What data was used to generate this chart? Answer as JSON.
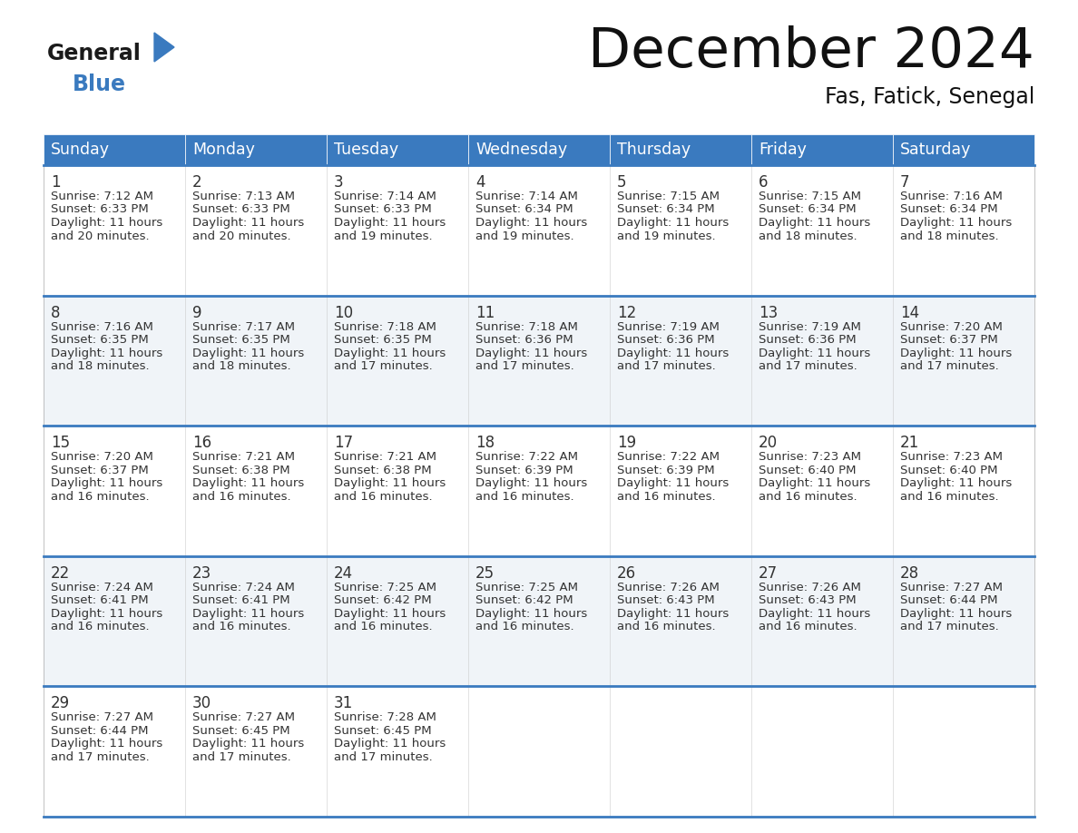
{
  "title": "December 2024",
  "subtitle": "Fas, Fatick, Senegal",
  "header_color": "#3a7abf",
  "header_text_color": "#ffffff",
  "cell_bg_light": "#f0f4f8",
  "cell_bg_white": "#ffffff",
  "days_of_week": [
    "Sunday",
    "Monday",
    "Tuesday",
    "Wednesday",
    "Thursday",
    "Friday",
    "Saturday"
  ],
  "weeks": [
    [
      {
        "day": 1,
        "sunrise": "7:12 AM",
        "sunset": "6:33 PM",
        "daylight": "11 hours and 20 minutes."
      },
      {
        "day": 2,
        "sunrise": "7:13 AM",
        "sunset": "6:33 PM",
        "daylight": "11 hours and 20 minutes."
      },
      {
        "day": 3,
        "sunrise": "7:14 AM",
        "sunset": "6:33 PM",
        "daylight": "11 hours and 19 minutes."
      },
      {
        "day": 4,
        "sunrise": "7:14 AM",
        "sunset": "6:34 PM",
        "daylight": "11 hours and 19 minutes."
      },
      {
        "day": 5,
        "sunrise": "7:15 AM",
        "sunset": "6:34 PM",
        "daylight": "11 hours and 19 minutes."
      },
      {
        "day": 6,
        "sunrise": "7:15 AM",
        "sunset": "6:34 PM",
        "daylight": "11 hours and 18 minutes."
      },
      {
        "day": 7,
        "sunrise": "7:16 AM",
        "sunset": "6:34 PM",
        "daylight": "11 hours and 18 minutes."
      }
    ],
    [
      {
        "day": 8,
        "sunrise": "7:16 AM",
        "sunset": "6:35 PM",
        "daylight": "11 hours and 18 minutes."
      },
      {
        "day": 9,
        "sunrise": "7:17 AM",
        "sunset": "6:35 PM",
        "daylight": "11 hours and 18 minutes."
      },
      {
        "day": 10,
        "sunrise": "7:18 AM",
        "sunset": "6:35 PM",
        "daylight": "11 hours and 17 minutes."
      },
      {
        "day": 11,
        "sunrise": "7:18 AM",
        "sunset": "6:36 PM",
        "daylight": "11 hours and 17 minutes."
      },
      {
        "day": 12,
        "sunrise": "7:19 AM",
        "sunset": "6:36 PM",
        "daylight": "11 hours and 17 minutes."
      },
      {
        "day": 13,
        "sunrise": "7:19 AM",
        "sunset": "6:36 PM",
        "daylight": "11 hours and 17 minutes."
      },
      {
        "day": 14,
        "sunrise": "7:20 AM",
        "sunset": "6:37 PM",
        "daylight": "11 hours and 17 minutes."
      }
    ],
    [
      {
        "day": 15,
        "sunrise": "7:20 AM",
        "sunset": "6:37 PM",
        "daylight": "11 hours and 16 minutes."
      },
      {
        "day": 16,
        "sunrise": "7:21 AM",
        "sunset": "6:38 PM",
        "daylight": "11 hours and 16 minutes."
      },
      {
        "day": 17,
        "sunrise": "7:21 AM",
        "sunset": "6:38 PM",
        "daylight": "11 hours and 16 minutes."
      },
      {
        "day": 18,
        "sunrise": "7:22 AM",
        "sunset": "6:39 PM",
        "daylight": "11 hours and 16 minutes."
      },
      {
        "day": 19,
        "sunrise": "7:22 AM",
        "sunset": "6:39 PM",
        "daylight": "11 hours and 16 minutes."
      },
      {
        "day": 20,
        "sunrise": "7:23 AM",
        "sunset": "6:40 PM",
        "daylight": "11 hours and 16 minutes."
      },
      {
        "day": 21,
        "sunrise": "7:23 AM",
        "sunset": "6:40 PM",
        "daylight": "11 hours and 16 minutes."
      }
    ],
    [
      {
        "day": 22,
        "sunrise": "7:24 AM",
        "sunset": "6:41 PM",
        "daylight": "11 hours and 16 minutes."
      },
      {
        "day": 23,
        "sunrise": "7:24 AM",
        "sunset": "6:41 PM",
        "daylight": "11 hours and 16 minutes."
      },
      {
        "day": 24,
        "sunrise": "7:25 AM",
        "sunset": "6:42 PM",
        "daylight": "11 hours and 16 minutes."
      },
      {
        "day": 25,
        "sunrise": "7:25 AM",
        "sunset": "6:42 PM",
        "daylight": "11 hours and 16 minutes."
      },
      {
        "day": 26,
        "sunrise": "7:26 AM",
        "sunset": "6:43 PM",
        "daylight": "11 hours and 16 minutes."
      },
      {
        "day": 27,
        "sunrise": "7:26 AM",
        "sunset": "6:43 PM",
        "daylight": "11 hours and 16 minutes."
      },
      {
        "day": 28,
        "sunrise": "7:27 AM",
        "sunset": "6:44 PM",
        "daylight": "11 hours and 17 minutes."
      }
    ],
    [
      {
        "day": 29,
        "sunrise": "7:27 AM",
        "sunset": "6:44 PM",
        "daylight": "11 hours and 17 minutes."
      },
      {
        "day": 30,
        "sunrise": "7:27 AM",
        "sunset": "6:45 PM",
        "daylight": "11 hours and 17 minutes."
      },
      {
        "day": 31,
        "sunrise": "7:28 AM",
        "sunset": "6:45 PM",
        "daylight": "11 hours and 17 minutes."
      },
      null,
      null,
      null,
      null
    ]
  ],
  "logo_general_color": "#1a1a1a",
  "logo_blue_color": "#3a7abf",
  "divider_color": "#3a7abf",
  "text_color": "#333333"
}
